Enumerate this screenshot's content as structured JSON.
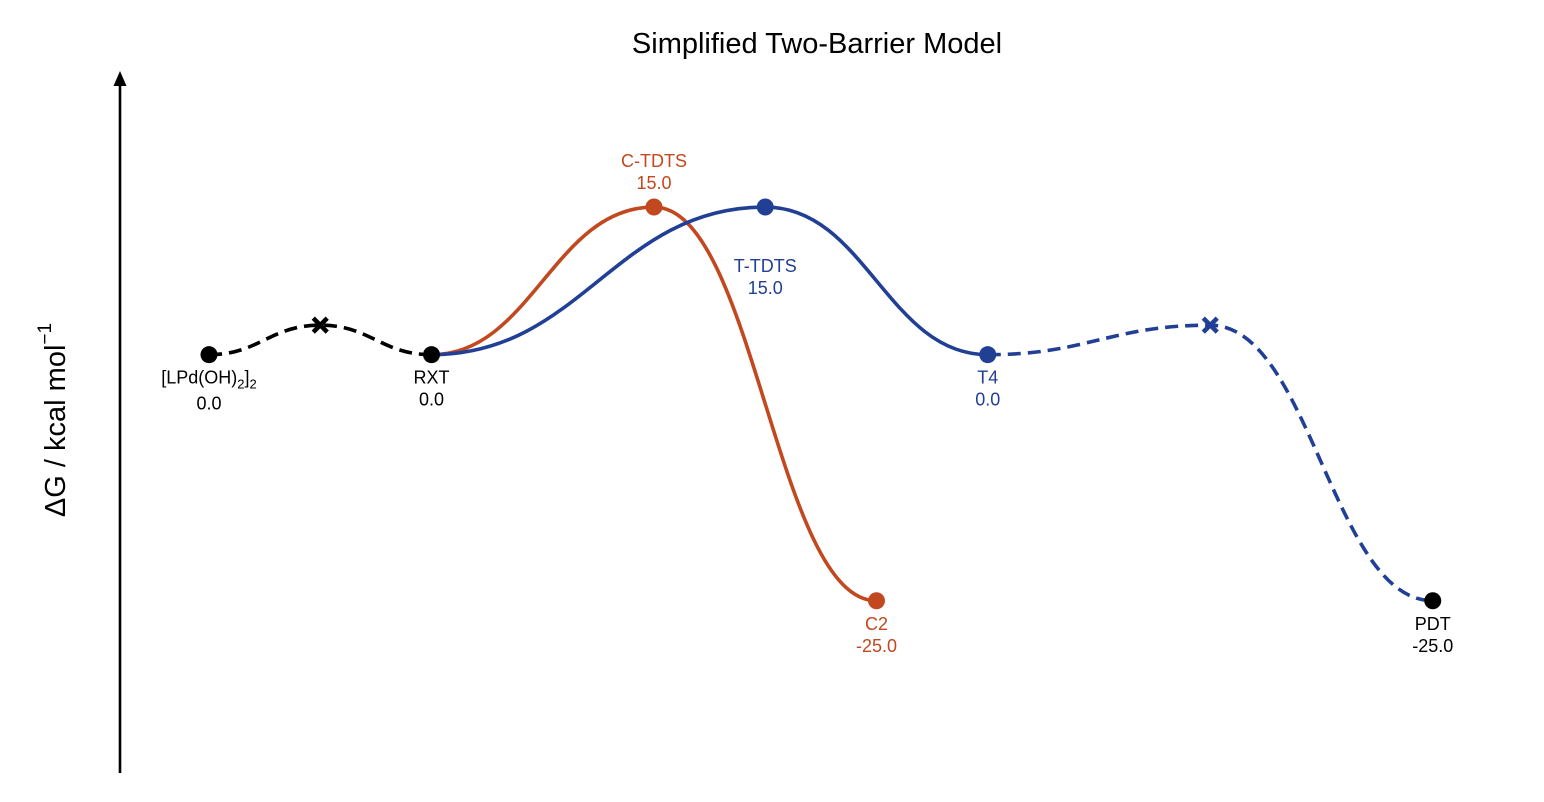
{
  "chart_data": {
    "type": "line",
    "title": "Simplified Two-Barrier Model",
    "ylabel": {
      "text": "ΔG / kcal mol",
      "superscript": "−1"
    },
    "xlabel": "",
    "grid": false,
    "legend": "none",
    "colors": {
      "black": "#000000",
      "orange": "#c2481f",
      "blue": "#223f96"
    },
    "points": [
      {
        "id": "pd",
        "name": "[LPd(OH)",
        "sub1": "2",
        "mid": "]",
        "sub2": "2",
        "value": "0.0",
        "x": 1,
        "y": 0.0,
        "color": "black",
        "marker": "circle"
      },
      {
        "id": "x1",
        "x": 2,
        "y": 3.0,
        "color": "black",
        "marker": "x"
      },
      {
        "id": "rxt",
        "name": "RXT",
        "value": "0.0",
        "x": 3,
        "y": 0.0,
        "color": "black",
        "marker": "circle"
      },
      {
        "id": "ctdts",
        "name": "C-TDTS",
        "value": "15.0",
        "x": 5,
        "y": 15.0,
        "color": "orange",
        "marker": "circle",
        "label_pos": "above"
      },
      {
        "id": "ttdts",
        "name": "T-TDTS",
        "value": "15.0",
        "x": 6,
        "y": 15.0,
        "color": "blue",
        "marker": "circle",
        "label_pos": "below-far"
      },
      {
        "id": "t4",
        "name": "T4",
        "value": "0.0",
        "x": 8,
        "y": 0.0,
        "color": "blue",
        "marker": "circle"
      },
      {
        "id": "c2",
        "name": "C2",
        "value": "-25.0",
        "x": 7,
        "y": -25.0,
        "color": "orange",
        "marker": "circle"
      },
      {
        "id": "x2",
        "x": 10,
        "y": 3.0,
        "color": "blue",
        "marker": "x"
      },
      {
        "id": "pdt",
        "name": "PDT",
        "value": "-25.0",
        "x": 12,
        "y": -25.0,
        "color": "black",
        "marker": "circle"
      }
    ],
    "series": [
      {
        "path": [
          "pd",
          "x1",
          "rxt"
        ],
        "color": "black",
        "style": "dashed"
      },
      {
        "path": [
          "rxt",
          "ctdts",
          "c2"
        ],
        "color": "orange",
        "style": "solid"
      },
      {
        "path": [
          "rxt",
          "ttdts",
          "t4"
        ],
        "color": "blue",
        "style": "solid"
      },
      {
        "path": [
          "t4",
          "x2",
          "pdt"
        ],
        "color": "blue",
        "style": "dashed"
      }
    ],
    "xlim": [
      0.2,
      13.0
    ],
    "ylim": [
      -42.5,
      27.5
    ]
  }
}
